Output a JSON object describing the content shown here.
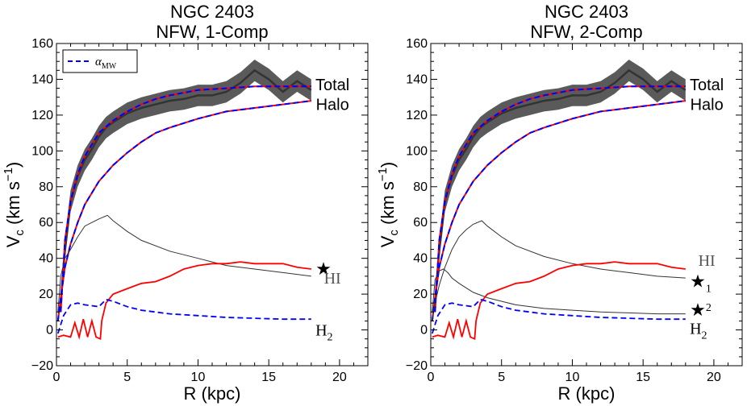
{
  "chart_data": [
    {
      "type": "line",
      "title": [
        "NGC 2403",
        "NFW, 1-Comp"
      ],
      "xlabel": "R (kpc)",
      "ylabel": "V_c (km s^-1)",
      "xlim": [
        0,
        22
      ],
      "ylim": [
        -20,
        160
      ],
      "xticks": [
        0,
        5,
        10,
        15,
        20
      ],
      "yticks": [
        -20,
        0,
        20,
        40,
        60,
        80,
        100,
        120,
        140,
        160
      ],
      "legend": {
        "label": "α_MW",
        "style": "blue dashed",
        "position": "top-left"
      },
      "curve_labels": [
        {
          "text": "Total",
          "style": "sans",
          "at": [
            19.5,
            137
          ]
        },
        {
          "text": "Halo",
          "style": "sans",
          "at": [
            19.5,
            126
          ]
        },
        {
          "text": "★",
          "style": "star",
          "at": [
            18.3,
            34
          ]
        },
        {
          "text": "HI",
          "style": "serif-gray",
          "at": [
            18.9,
            29
          ]
        },
        {
          "text": "H",
          "sub": "2",
          "style": "serif",
          "at": [
            18.3,
            0
          ]
        }
      ],
      "series": [
        {
          "name": "Total (observed, with error band)",
          "x": [
            0.3,
            0.6,
            1.0,
            1.5,
            2.0,
            2.5,
            3.0,
            3.5,
            4.0,
            5.0,
            6.0,
            7.0,
            8.0,
            9.0,
            10.0,
            11.0,
            12.0,
            13.0,
            14.0,
            15.0,
            16.0,
            17.0,
            18.0
          ],
          "y": [
            15,
            45,
            72,
            86,
            95,
            101,
            108,
            113,
            116,
            121,
            124,
            126,
            128,
            129,
            131,
            131,
            133,
            138,
            145,
            140,
            133,
            139,
            134
          ],
          "err": 6
        },
        {
          "name": "Total fit",
          "x": [
            0.3,
            0.6,
            1.0,
            1.5,
            2.0,
            3.0,
            4.0,
            5.0,
            6.0,
            7.0,
            8.0,
            10.0,
            12.0,
            14.0,
            16.0,
            18.0
          ],
          "y": [
            10,
            50,
            72,
            87,
            97,
            110,
            117,
            122,
            126,
            129,
            131,
            134,
            135,
            136,
            136,
            136
          ]
        },
        {
          "name": "Halo",
          "x": [
            0.1,
            0.3,
            0.6,
            1.0,
            1.5,
            2.0,
            3.0,
            4.0,
            5.0,
            6.0,
            7.0,
            8.0,
            10.0,
            12.0,
            14.0,
            16.0,
            18.0
          ],
          "y": [
            5,
            18,
            35,
            48,
            60,
            70,
            83,
            92,
            99,
            105,
            110,
            113,
            118,
            122,
            124,
            126,
            128
          ]
        },
        {
          "name": "Stellar disk (★)",
          "x": [
            0.1,
            0.3,
            0.6,
            1.0,
            1.5,
            2.0,
            2.5,
            3.0,
            3.6,
            4.0,
            5.0,
            6.0,
            8.0,
            10.0,
            12.0,
            14.0,
            16.0,
            18.0
          ],
          "y": [
            10,
            30,
            40,
            45,
            52,
            58,
            60,
            62,
            64,
            61,
            55,
            50,
            44,
            40,
            36,
            34,
            32,
            30
          ]
        },
        {
          "name": "HI",
          "x": [
            0.1,
            0.5,
            1.0,
            1.3,
            1.6,
            1.9,
            2.2,
            2.5,
            2.8,
            3.1,
            3.2,
            3.5,
            4.0,
            5.0,
            6.0,
            7.0,
            8.0,
            9.0,
            10.0,
            11.0,
            12.0,
            13.0,
            14.0,
            15.0,
            16.0,
            17.0,
            18.0
          ],
          "y": [
            -4,
            -3,
            -4,
            4,
            -4,
            6,
            -4,
            5,
            -4,
            -5,
            5,
            15,
            20,
            23,
            26,
            27,
            30,
            34,
            36,
            37,
            37,
            38,
            37,
            37,
            37,
            35,
            34
          ]
        },
        {
          "name": "H2",
          "x": [
            0.1,
            0.5,
            1.0,
            1.5,
            2.0,
            3.0,
            3.5,
            4.0,
            5.0,
            6.0,
            8.0,
            10.0,
            12.0,
            14.0,
            16.0,
            18.0
          ],
          "y": [
            -2,
            8,
            14,
            15,
            14,
            13,
            17,
            16,
            13,
            11,
            9,
            8,
            7,
            6.5,
            6,
            6
          ]
        }
      ]
    },
    {
      "type": "line",
      "title": [
        "NGC 2403",
        "NFW, 2-Comp"
      ],
      "xlabel": "R (kpc)",
      "ylabel": "V_c (km s^-1)",
      "xlim": [
        0,
        22
      ],
      "ylim": [
        -20,
        160
      ],
      "xticks": [
        0,
        5,
        10,
        15,
        20
      ],
      "yticks": [
        -20,
        0,
        20,
        40,
        60,
        80,
        100,
        120,
        140,
        160
      ],
      "curve_labels": [
        {
          "text": "Total",
          "style": "sans",
          "at": [
            19.5,
            137
          ]
        },
        {
          "text": "Halo",
          "style": "sans",
          "at": [
            19.5,
            126
          ]
        },
        {
          "text": "HI",
          "style": "serif-gray",
          "at": [
            18.9,
            39
          ]
        },
        {
          "text": "★",
          "sub": "1",
          "style": "star",
          "at": [
            18.3,
            27
          ]
        },
        {
          "text": "★",
          "sup": "2",
          "style": "star",
          "at": [
            18.3,
            11
          ]
        },
        {
          "text": "H",
          "sub": "2",
          "style": "serif",
          "at": [
            18.3,
            1
          ]
        }
      ],
      "series": [
        {
          "name": "Total (observed, with error band)",
          "x": [
            0.3,
            0.6,
            1.0,
            1.5,
            2.0,
            2.5,
            3.0,
            3.5,
            4.0,
            5.0,
            6.0,
            7.0,
            8.0,
            9.0,
            10.0,
            11.0,
            12.0,
            13.0,
            14.0,
            15.0,
            16.0,
            17.0,
            18.0
          ],
          "y": [
            15,
            45,
            72,
            86,
            95,
            101,
            108,
            113,
            116,
            121,
            124,
            126,
            128,
            129,
            131,
            131,
            133,
            138,
            145,
            140,
            133,
            139,
            134
          ],
          "err": 6
        },
        {
          "name": "Total fit",
          "x": [
            0.3,
            0.6,
            1.0,
            1.5,
            2.0,
            3.0,
            4.0,
            5.0,
            6.0,
            7.0,
            8.0,
            10.0,
            12.0,
            14.0,
            16.0,
            18.0
          ],
          "y": [
            10,
            50,
            72,
            87,
            97,
            110,
            117,
            122,
            126,
            129,
            131,
            134,
            135,
            136,
            136,
            136
          ]
        },
        {
          "name": "Halo",
          "x": [
            0.1,
            0.3,
            0.6,
            1.0,
            1.5,
            2.0,
            3.0,
            4.0,
            5.0,
            6.0,
            7.0,
            8.0,
            10.0,
            12.0,
            14.0,
            16.0,
            18.0
          ],
          "y": [
            5,
            18,
            35,
            48,
            60,
            70,
            83,
            92,
            99,
            105,
            110,
            113,
            118,
            122,
            124,
            126,
            128
          ]
        },
        {
          "name": "Stellar disk 1 (★1)",
          "x": [
            0.1,
            0.3,
            0.6,
            1.0,
            1.5,
            2.0,
            2.5,
            3.0,
            3.6,
            4.0,
            5.0,
            6.0,
            8.0,
            10.0,
            12.0,
            14.0,
            16.0,
            18.0
          ],
          "y": [
            5,
            15,
            25,
            35,
            45,
            52,
            56,
            59,
            61,
            58,
            52,
            47,
            41,
            37,
            34,
            32,
            30,
            29
          ]
        },
        {
          "name": "Stellar bulge 2 (★2)",
          "x": [
            0.1,
            0.3,
            0.6,
            0.9,
            1.2,
            1.5,
            2.0,
            3.0,
            4.0,
            5.0,
            6.0,
            8.0,
            10.0,
            12.0,
            14.0,
            16.0,
            18.0
          ],
          "y": [
            10,
            28,
            33,
            34,
            32,
            29,
            26,
            21,
            18,
            16,
            14,
            12,
            11,
            10,
            9.5,
            9,
            9
          ]
        },
        {
          "name": "HI",
          "x": [
            0.1,
            0.5,
            1.0,
            1.3,
            1.6,
            1.9,
            2.2,
            2.5,
            2.8,
            3.1,
            3.2,
            3.5,
            4.0,
            5.0,
            6.0,
            7.0,
            8.0,
            9.0,
            10.0,
            11.0,
            12.0,
            13.0,
            14.0,
            15.0,
            16.0,
            17.0,
            18.0
          ],
          "y": [
            -4,
            -3,
            -4,
            4,
            -4,
            6,
            -4,
            5,
            -4,
            -5,
            5,
            15,
            20,
            23,
            26,
            27,
            30,
            34,
            36,
            37,
            37,
            38,
            37,
            37,
            37,
            35,
            34
          ]
        },
        {
          "name": "H2",
          "x": [
            0.1,
            0.5,
            1.0,
            1.5,
            2.0,
            3.0,
            3.5,
            4.0,
            5.0,
            6.0,
            8.0,
            10.0,
            12.0,
            14.0,
            16.0,
            18.0
          ],
          "y": [
            -2,
            8,
            14,
            15,
            14,
            13,
            17,
            16,
            13,
            11,
            9,
            8,
            7,
            6.5,
            6,
            6
          ]
        }
      ]
    }
  ]
}
